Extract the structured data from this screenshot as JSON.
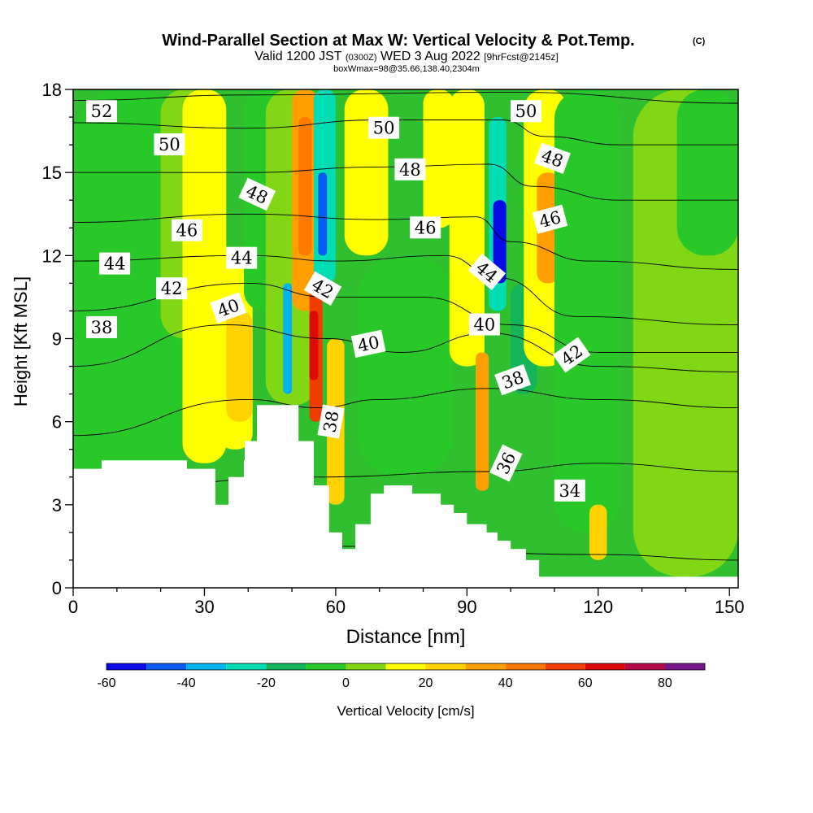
{
  "header": {
    "title": "Wind-Parallel Section at Max W: Vertical Velocity & Pot.Temp.",
    "title_mark": "(C)",
    "valid_prefix": "Valid 1200 JST",
    "valid_utc": "(0300Z)",
    "valid_date": "WED 3 Aug 2022",
    "forecast_tag": "[9hrFcst@2145z]",
    "box_info": "boxWmax=98@35.66,138.40,2304m"
  },
  "chart_data": {
    "type": "heatmap",
    "xlabel": "Distance [nm]",
    "ylabel": "Height [Kft MSL]",
    "xlim": [
      0,
      152
    ],
    "ylim": [
      0,
      18
    ],
    "x_ticks": [
      "0",
      "30",
      "60",
      "90",
      "120",
      "150"
    ],
    "y_ticks": [
      "0",
      "3",
      "6",
      "9",
      "12",
      "15",
      "18"
    ],
    "colorbar": {
      "label": "Vertical Velocity [cm/s]",
      "min": -60,
      "max": 90,
      "step": 10,
      "tick_labels": [
        "-60",
        "-40",
        "-20",
        "0",
        "20",
        "40",
        "60",
        "80"
      ],
      "colors": [
        "#0a0ae6",
        "#0a5cf0",
        "#00b4f0",
        "#00dcb4",
        "#14b45a",
        "#28c828",
        "#82d714",
        "#ffff00",
        "#ffd200",
        "#ffa000",
        "#ff7800",
        "#f03c00",
        "#dc0a0a",
        "#b40a46",
        "#78148c"
      ]
    },
    "terrain_kft": [
      [
        0,
        4.3
      ],
      [
        6.5,
        4.3
      ],
      [
        6.5,
        4.6
      ],
      [
        26,
        4.6
      ],
      [
        26,
        4.3
      ],
      [
        32.5,
        4.3
      ],
      [
        32.5,
        3.0
      ],
      [
        35.5,
        3.0
      ],
      [
        35.5,
        4.0
      ],
      [
        39,
        4.0
      ],
      [
        39,
        4.6
      ],
      [
        39.2,
        4.6
      ],
      [
        39.2,
        5.3
      ],
      [
        42,
        5.3
      ],
      [
        42,
        6.6
      ],
      [
        51.5,
        6.6
      ],
      [
        51.5,
        5.3
      ],
      [
        55,
        5.3
      ],
      [
        55,
        3.7
      ],
      [
        58.5,
        3.7
      ],
      [
        58.5,
        2.0
      ],
      [
        61.5,
        2.0
      ],
      [
        61.5,
        1.4
      ],
      [
        64.5,
        1.4
      ],
      [
        64.5,
        2.3
      ],
      [
        68,
        2.3
      ],
      [
        68,
        3.4
      ],
      [
        71,
        3.4
      ],
      [
        71,
        3.7
      ],
      [
        77.5,
        3.7
      ],
      [
        77.5,
        3.4
      ],
      [
        84,
        3.4
      ],
      [
        84,
        3.0
      ],
      [
        87,
        3.0
      ],
      [
        87,
        2.7
      ],
      [
        90,
        2.7
      ],
      [
        90,
        2.3
      ],
      [
        94.5,
        2.3
      ],
      [
        94.5,
        2.0
      ],
      [
        97,
        2.0
      ],
      [
        97,
        1.7
      ],
      [
        100,
        1.7
      ],
      [
        100,
        1.4
      ],
      [
        103.5,
        1.4
      ],
      [
        103.5,
        1.0
      ],
      [
        106.5,
        1.0
      ],
      [
        106.5,
        0.4
      ],
      [
        152,
        0.4
      ]
    ],
    "wv_cells": [
      {
        "x": 0,
        "w": 25,
        "z": 0,
        "h": 18,
        "v": -5
      },
      {
        "x": 20,
        "w": 12,
        "z": 9,
        "h": 9,
        "v": 5
      },
      {
        "x": 25,
        "w": 10,
        "z": 4.5,
        "h": 13.5,
        "v": 12
      },
      {
        "x": 27,
        "w": 6,
        "z": 5,
        "h": 13,
        "v": 18
      },
      {
        "x": 33,
        "w": 8,
        "z": 5,
        "h": 7,
        "v": 12
      },
      {
        "x": 35,
        "w": 6,
        "z": 6,
        "h": 4,
        "v": 22
      },
      {
        "x": 39,
        "w": 10,
        "z": 10,
        "h": 8,
        "v": -5
      },
      {
        "x": 44,
        "w": 12,
        "z": 6.6,
        "h": 11.4,
        "v": 5
      },
      {
        "x": 48,
        "w": 2,
        "z": 7,
        "h": 4,
        "v": -35
      },
      {
        "x": 50,
        "w": 6,
        "z": 10,
        "h": 8,
        "v": 30
      },
      {
        "x": 51.5,
        "w": 3,
        "z": 12,
        "h": 5,
        "v": 42
      },
      {
        "x": 54,
        "w": 3,
        "z": 6,
        "h": 5,
        "v": 52
      },
      {
        "x": 54,
        "w": 2,
        "z": 7.5,
        "h": 2.5,
        "v": 65
      },
      {
        "x": 55,
        "w": 5,
        "z": 11,
        "h": 7,
        "v": -25
      },
      {
        "x": 56,
        "w": 2,
        "z": 12,
        "h": 3,
        "v": -45
      },
      {
        "x": 58,
        "w": 4,
        "z": 3,
        "h": 6,
        "v": 25
      },
      {
        "x": 62,
        "w": 10,
        "z": 12,
        "h": 6,
        "v": 18
      },
      {
        "x": 65,
        "w": 22,
        "z": 4,
        "h": 8,
        "v": -5
      },
      {
        "x": 80,
        "w": 7,
        "z": 13,
        "h": 5,
        "v": 12
      },
      {
        "x": 86,
        "w": 8,
        "z": 8,
        "h": 10,
        "v": 12
      },
      {
        "x": 92,
        "w": 3,
        "z": 3.5,
        "h": 5,
        "v": 32
      },
      {
        "x": 95,
        "w": 4,
        "z": 10,
        "h": 7,
        "v": -30
      },
      {
        "x": 96,
        "w": 3,
        "z": 11,
        "h": 3,
        "v": -55
      },
      {
        "x": 100,
        "w": 6,
        "z": 7,
        "h": 4,
        "v": -20
      },
      {
        "x": 103,
        "w": 10,
        "z": 8,
        "h": 10,
        "v": 15
      },
      {
        "x": 106,
        "w": 5,
        "z": 11,
        "h": 4,
        "v": 35
      },
      {
        "x": 110,
        "w": 15,
        "z": 2,
        "h": 16,
        "v": -5
      },
      {
        "x": 118,
        "w": 4,
        "z": 1,
        "h": 2,
        "v": 22
      },
      {
        "x": 128,
        "w": 24,
        "z": 0.4,
        "h": 17.6,
        "v": 5
      },
      {
        "x": 138,
        "w": 14,
        "z": 12,
        "h": 6,
        "v": -5
      }
    ],
    "isentropes": [
      {
        "value": 34,
        "points": [
          [
            0,
            1.8
          ],
          [
            60,
            1.5
          ],
          [
            120,
            1.2
          ],
          [
            152,
            1.0
          ]
        ]
      },
      {
        "value": 36,
        "points": [
          [
            0,
            3.5
          ],
          [
            55,
            4.0
          ],
          [
            95,
            4.2
          ],
          [
            120,
            4.5
          ],
          [
            152,
            4.2
          ]
        ]
      },
      {
        "value": 38,
        "points": [
          [
            0,
            5.5
          ],
          [
            40,
            6.8
          ],
          [
            56,
            6.5
          ],
          [
            70,
            6.8
          ],
          [
            95,
            7.2
          ],
          [
            120,
            6.8
          ],
          [
            152,
            6.5
          ]
        ]
      },
      {
        "value": 40,
        "points": [
          [
            0,
            8.0
          ],
          [
            35,
            9.5
          ],
          [
            58,
            9.0
          ],
          [
            75,
            8.5
          ],
          [
            95,
            9.2
          ],
          [
            120,
            8.0
          ],
          [
            152,
            7.8
          ]
        ]
      },
      {
        "value": 42,
        "points": [
          [
            0,
            10.0
          ],
          [
            40,
            11.0
          ],
          [
            58,
            10.5
          ],
          [
            80,
            10.5
          ],
          [
            100,
            9.5
          ],
          [
            120,
            8.5
          ],
          [
            152,
            8.5
          ]
        ]
      },
      {
        "value": 44,
        "points": [
          [
            0,
            11.8
          ],
          [
            40,
            12.0
          ],
          [
            60,
            11.8
          ],
          [
            85,
            12.0
          ],
          [
            97,
            11.2
          ],
          [
            115,
            9.8
          ],
          [
            152,
            9.5
          ]
        ]
      },
      {
        "value": 46,
        "points": [
          [
            0,
            13.2
          ],
          [
            40,
            13.5
          ],
          [
            70,
            13.3
          ],
          [
            92,
            13.4
          ],
          [
            100,
            12.5
          ],
          [
            118,
            11.8
          ],
          [
            152,
            11.5
          ]
        ]
      },
      {
        "value": 48,
        "points": [
          [
            0,
            15.0
          ],
          [
            40,
            15.0
          ],
          [
            70,
            15.2
          ],
          [
            95,
            15.3
          ],
          [
            105,
            14.5
          ],
          [
            125,
            14.0
          ],
          [
            152,
            14.0
          ]
        ]
      },
      {
        "value": 50,
        "points": [
          [
            0,
            16.8
          ],
          [
            40,
            16.6
          ],
          [
            70,
            16.9
          ],
          [
            98,
            16.9
          ],
          [
            108,
            16.3
          ],
          [
            125,
            16.0
          ],
          [
            152,
            16.0
          ]
        ]
      },
      {
        "value": 52,
        "points": [
          [
            0,
            17.6
          ],
          [
            40,
            17.8
          ],
          [
            100,
            17.9
          ],
          [
            152,
            17.5
          ]
        ]
      }
    ],
    "contour_labels": [
      {
        "text": "52",
        "x": 6.5,
        "z": 17.2,
        "rot": 0
      },
      {
        "text": "50",
        "x": 22,
        "z": 16.0,
        "rot": 0
      },
      {
        "text": "48",
        "x": 42,
        "z": 14.2,
        "rot": 25
      },
      {
        "text": "46",
        "x": 26,
        "z": 12.9,
        "rot": 0
      },
      {
        "text": "44",
        "x": 9.5,
        "z": 11.7,
        "rot": 0
      },
      {
        "text": "44",
        "x": 38.5,
        "z": 11.9,
        "rot": 0
      },
      {
        "text": "42",
        "x": 22.5,
        "z": 10.8,
        "rot": 0
      },
      {
        "text": "42",
        "x": 57,
        "z": 10.8,
        "rot": 30
      },
      {
        "text": "40",
        "x": 35.5,
        "z": 10.1,
        "rot": -20
      },
      {
        "text": "38",
        "x": 6.5,
        "z": 9.4,
        "rot": 0
      },
      {
        "text": "40",
        "x": 67.5,
        "z": 8.8,
        "rot": -12
      },
      {
        "text": "38",
        "x": 59,
        "z": 6.0,
        "rot": -80
      },
      {
        "text": "50",
        "x": 71,
        "z": 16.6,
        "rot": 0
      },
      {
        "text": "48",
        "x": 77,
        "z": 15.1,
        "rot": 0
      },
      {
        "text": "46",
        "x": 80.5,
        "z": 13.0,
        "rot": 0
      },
      {
        "text": "50",
        "x": 103.5,
        "z": 17.2,
        "rot": 0
      },
      {
        "text": "48",
        "x": 109.5,
        "z": 15.5,
        "rot": 20
      },
      {
        "text": "46",
        "x": 109,
        "z": 13.3,
        "rot": -15
      },
      {
        "text": "44",
        "x": 94.5,
        "z": 11.4,
        "rot": 40
      },
      {
        "text": "40",
        "x": 94,
        "z": 9.5,
        "rot": 0
      },
      {
        "text": "42",
        "x": 114,
        "z": 8.4,
        "rot": -35
      },
      {
        "text": "38",
        "x": 100.5,
        "z": 7.5,
        "rot": -20
      },
      {
        "text": "36",
        "x": 99,
        "z": 4.5,
        "rot": -65
      },
      {
        "text": "34",
        "x": 113.5,
        "z": 3.5,
        "rot": 0
      }
    ]
  }
}
